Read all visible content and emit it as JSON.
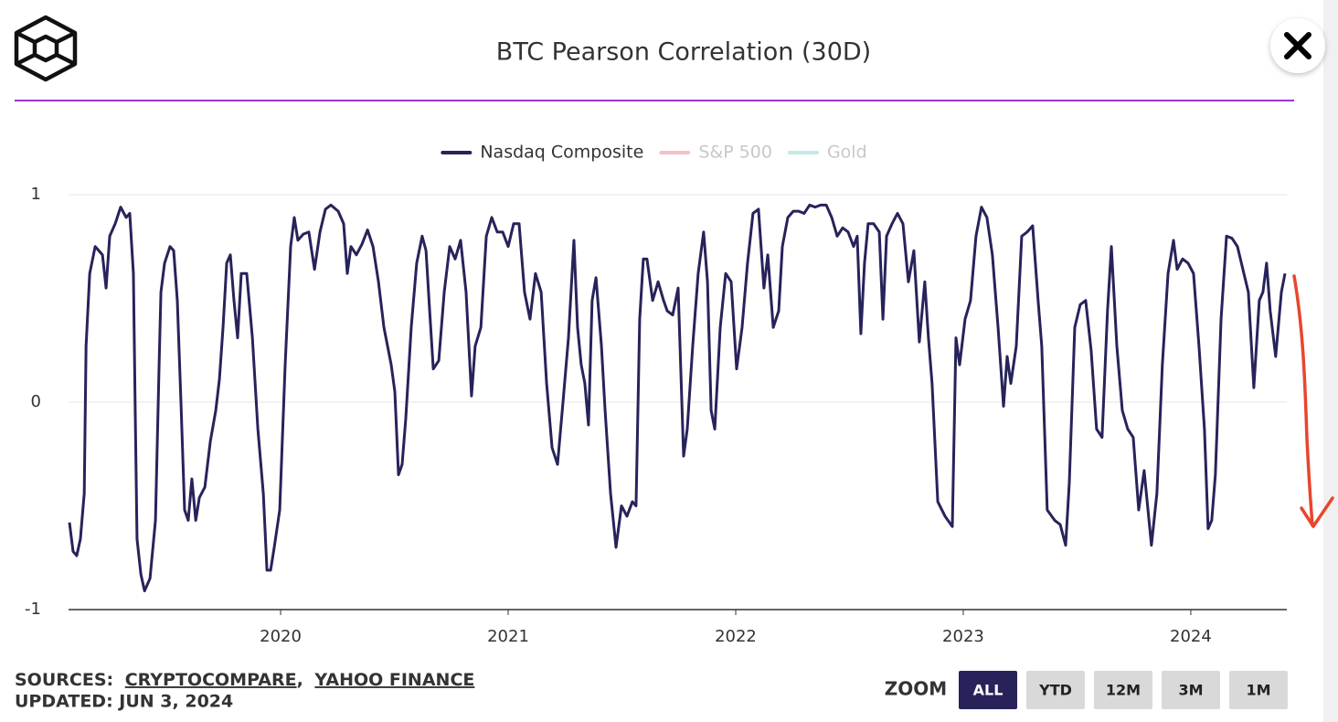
{
  "chart_data": {
    "type": "line",
    "title": "BTC Pearson Correlation (30D)",
    "x": [
      2019.072,
      2019.088,
      2019.104,
      2019.12,
      2019.137,
      2019.145,
      2019.161,
      2019.185,
      2019.201,
      2019.217,
      2019.233,
      2019.249,
      2019.273,
      2019.297,
      2019.321,
      2019.337,
      2019.353,
      2019.361,
      2019.369,
      2019.386,
      2019.402,
      2019.426,
      2019.45,
      2019.466,
      2019.474,
      2019.49,
      2019.514,
      2019.53,
      2019.546,
      2019.562,
      2019.578,
      2019.594,
      2019.61,
      2019.627,
      2019.643,
      2019.667,
      2019.691,
      2019.715,
      2019.731,
      2019.747,
      2019.763,
      2019.779,
      2019.795,
      2019.811,
      2019.827,
      2019.851,
      2019.876,
      2019.9,
      2019.924,
      2019.94,
      2019.956,
      2019.972,
      2019.996,
      2020.02,
      2020.044,
      2020.06,
      2020.076,
      2020.1,
      2020.124,
      2020.149,
      2020.173,
      2020.197,
      2020.221,
      2020.253,
      2020.277,
      2020.293,
      2020.309,
      2020.333,
      2020.357,
      2020.382,
      2020.406,
      2020.43,
      2020.454,
      2020.47,
      2020.486,
      2020.502,
      2020.518,
      2020.534,
      2020.55,
      2020.574,
      2020.598,
      2020.622,
      2020.639,
      2020.655,
      2020.671,
      2020.695,
      2020.719,
      2020.743,
      2020.767,
      2020.791,
      2020.815,
      2020.839,
      2020.855,
      2020.88,
      2020.904,
      2020.928,
      2020.952,
      2020.976,
      2021.0,
      2021.024,
      2021.048,
      2021.072,
      2021.096,
      2021.12,
      2021.145,
      2021.169,
      2021.193,
      2021.217,
      2021.241,
      2021.265,
      2021.289,
      2021.305,
      2021.321,
      2021.337,
      2021.353,
      2021.369,
      2021.386,
      2021.41,
      2021.426,
      2021.45,
      2021.474,
      2021.498,
      2021.522,
      2021.546,
      2021.562,
      2021.578,
      2021.594,
      2021.61,
      2021.635,
      2021.659,
      2021.683,
      2021.699,
      2021.723,
      2021.747,
      2021.771,
      2021.787,
      2021.811,
      2021.835,
      2021.859,
      2021.876,
      2021.892,
      2021.908,
      2021.932,
      2021.956,
      2021.98,
      2022.004,
      2022.028,
      2022.052,
      2022.076,
      2022.1,
      2022.124,
      2022.141,
      2022.165,
      2022.189,
      2022.205,
      2022.229,
      2022.253,
      2022.277,
      2022.301,
      2022.325,
      2022.349,
      2022.373,
      2022.398,
      2022.422,
      2022.446,
      2022.47,
      2022.494,
      2022.518,
      2022.534,
      2022.55,
      2022.566,
      2022.582,
      2022.606,
      2022.631,
      2022.647,
      2022.663,
      2022.687,
      2022.711,
      2022.735,
      2022.759,
      2022.783,
      2022.807,
      2022.831,
      2022.847,
      2022.863,
      2022.888,
      2022.92,
      2022.952,
      2022.968,
      2022.984,
      2023.008,
      2023.032,
      2023.056,
      2023.08,
      2023.104,
      2023.128,
      2023.153,
      2023.177,
      2023.193,
      2023.209,
      2023.233,
      2023.257,
      2023.281,
      2023.305,
      2023.329,
      2023.345,
      2023.369,
      2023.402,
      2023.426,
      2023.45,
      2023.466,
      2023.49,
      2023.514,
      2023.538,
      2023.562,
      2023.586,
      2023.61,
      2023.634,
      2023.651,
      2023.675,
      2023.699,
      2023.723,
      2023.747,
      2023.771,
      2023.795,
      2023.827,
      2023.851,
      2023.875,
      2023.9,
      2023.924,
      2023.94,
      2023.964,
      2023.988,
      2024.012,
      2024.036,
      2024.06,
      2024.076,
      2024.092,
      2024.108,
      2024.133,
      2024.157,
      2024.181,
      2024.205,
      2024.229,
      2024.253,
      2024.277,
      2024.301,
      2024.317,
      2024.333,
      2024.349,
      2024.373,
      2024.398,
      2024.414
    ],
    "series": [
      {
        "name": "Nasdaq Composite",
        "color": "#27235a",
        "visible": true,
        "values": [
          -0.58,
          -0.72,
          -0.74,
          -0.66,
          -0.44,
          0.27,
          0.62,
          0.75,
          0.73,
          0.71,
          0.55,
          0.8,
          0.86,
          0.94,
          0.89,
          0.91,
          0.62,
          -0.04,
          -0.66,
          -0.83,
          -0.91,
          -0.85,
          -0.57,
          0.18,
          0.53,
          0.67,
          0.75,
          0.73,
          0.49,
          0,
          -0.52,
          -0.57,
          -0.37,
          -0.57,
          -0.46,
          -0.41,
          -0.19,
          -0.04,
          0.11,
          0.36,
          0.67,
          0.71,
          0.49,
          0.31,
          0.62,
          0.62,
          0.31,
          -0.13,
          -0.44,
          -0.81,
          -0.81,
          -0.7,
          -0.52,
          0.18,
          0.75,
          0.89,
          0.78,
          0.81,
          0.82,
          0.64,
          0.82,
          0.93,
          0.95,
          0.92,
          0.86,
          0.62,
          0.75,
          0.71,
          0.76,
          0.83,
          0.75,
          0.58,
          0.36,
          0.27,
          0.18,
          0.05,
          -0.35,
          -0.3,
          -0.08,
          0.36,
          0.67,
          0.8,
          0.73,
          0.44,
          0.16,
          0.2,
          0.53,
          0.75,
          0.69,
          0.78,
          0.53,
          0.03,
          0.27,
          0.36,
          0.8,
          0.89,
          0.82,
          0.82,
          0.75,
          0.86,
          0.86,
          0.53,
          0.4,
          0.62,
          0.53,
          0.09,
          -0.22,
          -0.3,
          0,
          0.31,
          0.78,
          0.36,
          0.18,
          0.09,
          -0.11,
          0.49,
          0.6,
          0.27,
          -0.04,
          -0.44,
          -0.7,
          -0.5,
          -0.55,
          -0.48,
          -0.5,
          0.4,
          0.69,
          0.69,
          0.49,
          0.58,
          0.49,
          0.44,
          0.42,
          0.55,
          -0.26,
          -0.13,
          0.27,
          0.62,
          0.82,
          0.58,
          -0.04,
          -0.13,
          0.36,
          0.62,
          0.58,
          0.16,
          0.36,
          0.67,
          0.91,
          0.93,
          0.55,
          0.71,
          0.36,
          0.44,
          0.75,
          0.89,
          0.92,
          0.92,
          0.91,
          0.95,
          0.94,
          0.95,
          0.95,
          0.89,
          0.8,
          0.84,
          0.82,
          0.75,
          0.8,
          0.33,
          0.67,
          0.86,
          0.86,
          0.82,
          0.4,
          0.8,
          0.86,
          0.91,
          0.86,
          0.58,
          0.73,
          0.29,
          0.58,
          0.31,
          0.09,
          -0.48,
          -0.55,
          -0.6,
          0.31,
          0.18,
          0.4,
          0.49,
          0.8,
          0.94,
          0.89,
          0.71,
          0.36,
          -0.02,
          0.22,
          0.09,
          0.27,
          0.8,
          0.82,
          0.85,
          0.49,
          0.27,
          -0.52,
          -0.57,
          -0.59,
          -0.69,
          -0.39,
          0.36,
          0.47,
          0.49,
          0.25,
          -0.13,
          -0.17,
          0.44,
          0.75,
          0.27,
          -0.04,
          -0.13,
          -0.17,
          -0.52,
          -0.33,
          -0.69,
          -0.44,
          0.18,
          0.62,
          0.78,
          0.64,
          0.69,
          0.67,
          0.62,
          0.27,
          -0.13,
          -0.61,
          -0.57,
          -0.35,
          0.4,
          0.8,
          0.79,
          0.75,
          0.64,
          0.53,
          0.07,
          0.49,
          0.53,
          0.67,
          0.44,
          0.22,
          0.53,
          0.62
        ]
      },
      {
        "name": "S&P 500",
        "color": "#f4c1c8",
        "visible": false
      },
      {
        "name": "Gold",
        "color": "#c5e8e5",
        "visible": false
      }
    ],
    "xlim": [
      2019.068,
      2024.422
    ],
    "xticks": [
      2020,
      2021,
      2022,
      2023,
      2024
    ],
    "ylim": [
      -1,
      1
    ],
    "yticks": [
      -1,
      0,
      1
    ],
    "grid": true,
    "legend": "top"
  },
  "footer": {
    "sources_label": "SOURCES:",
    "sources": [
      "CRYPTOCOMPARE",
      "YAHOO FINANCE"
    ],
    "separator": ",",
    "updated": "UPDATED: JUN 3, 2024"
  },
  "zoom": {
    "label": "ZOOM",
    "buttons": [
      "ALL",
      "YTD",
      "12M",
      "3M",
      "1M"
    ],
    "active": 0
  }
}
